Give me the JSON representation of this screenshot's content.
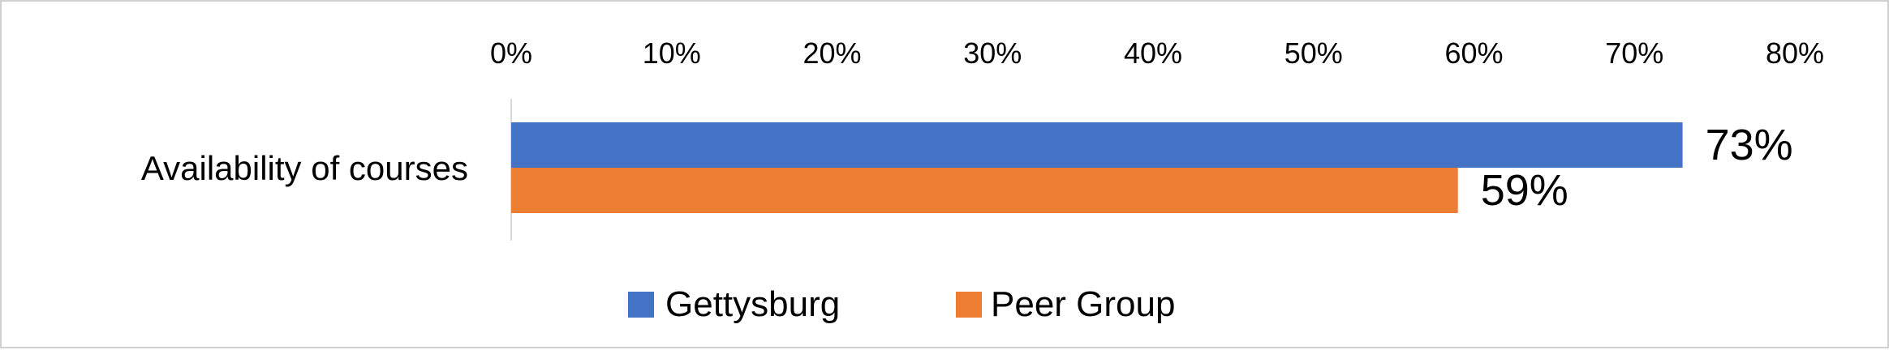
{
  "chart_data": {
    "type": "bar",
    "orientation": "horizontal",
    "categories": [
      "Availability of courses"
    ],
    "series": [
      {
        "name": "Gettysburg",
        "values": [
          73
        ],
        "color": "#4472C4"
      },
      {
        "name": "Peer Group",
        "values": [
          59
        ],
        "color": "#ED7D31"
      }
    ],
    "data_labels": [
      "73%",
      "59%"
    ],
    "xlim": [
      0,
      80
    ],
    "x_ticks": [
      "0%",
      "10%",
      "20%",
      "30%",
      "40%",
      "50%",
      "60%",
      "70%",
      "80%"
    ],
    "axis_position": "top",
    "grid": false,
    "legend_position": "bottom"
  }
}
